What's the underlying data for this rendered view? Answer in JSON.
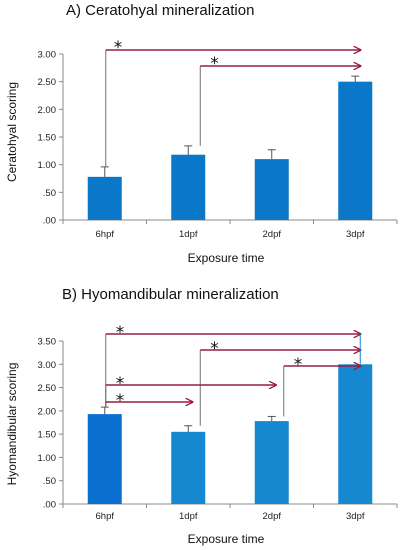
{
  "chart_data": [
    {
      "type": "bar",
      "title": "A) Ceratohyal mineralization",
      "xlabel": "Exposure time",
      "ylabel": "Ceratohyal scoring",
      "categories": [
        "6hpf",
        "1dpf",
        "2dpf",
        "3dpf"
      ],
      "values": [
        0.78,
        1.18,
        1.1,
        2.5
      ],
      "errors": [
        0.18,
        0.16,
        0.17,
        0.1
      ],
      "ylim": [
        0,
        3.0
      ],
      "yticks": [
        ".00",
        ".50",
        "1.00",
        "1.50",
        "2.00",
        "2.50",
        "3.00"
      ],
      "bar_colors": [
        "#0a77c8",
        "#0a77c8",
        "#0a77c8",
        "#0a77c8"
      ],
      "grid": false,
      "significance": [
        {
          "from": "6hpf",
          "to": "3dpf",
          "label": "*"
        },
        {
          "from": "1dpf",
          "to": "3dpf",
          "label": "*"
        }
      ]
    },
    {
      "type": "bar",
      "title": "B) Hyomandibular mineralization",
      "xlabel": "Exposure time",
      "ylabel": "Hyomandibular scoring",
      "categories": [
        "6hpf",
        "1dpf",
        "2dpf",
        "3dpf"
      ],
      "values": [
        1.93,
        1.55,
        1.78,
        3.0
      ],
      "errors": [
        0.15,
        0.13,
        0.1,
        0.0
      ],
      "ylim": [
        0,
        3.5
      ],
      "yticks": [
        ".00",
        ".50",
        "1.00",
        "1.50",
        "2.00",
        "2.50",
        "3.00",
        "3.50"
      ],
      "bar_colors": [
        "#0b6fd0",
        "#1588cf",
        "#1588cf",
        "#1588cf"
      ],
      "grid": false,
      "significance": [
        {
          "from": "6hpf",
          "to": "3dpf",
          "label": "*"
        },
        {
          "from": "1dpf",
          "to": "3dpf",
          "label": "*"
        },
        {
          "from": "2dpf",
          "to": "3dpf",
          "label": "*"
        },
        {
          "from": "6hpf",
          "to": "2dpf",
          "label": "*"
        },
        {
          "from": "6hpf",
          "to": "1dpf",
          "label": "*"
        }
      ]
    }
  ],
  "colors": {
    "arrow": "#9b1b45",
    "axis": "#8a8a8a",
    "connector": "#707070"
  }
}
